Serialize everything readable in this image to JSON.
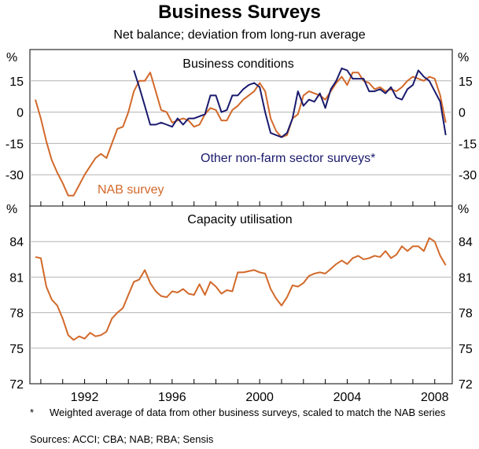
{
  "title": "Business Surveys",
  "subtitle": "Net balance; deviation from long-run average",
  "footnote_star": "*",
  "footnote_text": "Weighted average of data from other business surveys, scaled to match the NAB series",
  "sources": "Sources: ACCI; CBA; NAB; RBA; Sensis",
  "colors": {
    "nab": "#d2692a",
    "other": "#1a1a6e",
    "axis": "#000000",
    "grid": "#b3b3b3"
  },
  "chart_data": [
    {
      "type": "line",
      "title": "Business conditions",
      "ylabel": "%",
      "ylim": [
        -45,
        30
      ],
      "yticks": [
        "15",
        "0",
        "-15",
        "-30"
      ],
      "ytick_values": [
        15,
        0,
        -15,
        -30
      ],
      "xlim": [
        1989.5,
        2008.8
      ],
      "xticks": [
        "1992",
        "1996",
        "2000",
        "2004",
        "2008"
      ],
      "xtick_values": [
        1992,
        1996,
        2000,
        2004,
        2008
      ],
      "series": [
        {
          "name": "NAB survey",
          "x": [
            1989.75,
            1990,
            1990.25,
            1990.5,
            1990.75,
            1991,
            1991.25,
            1991.5,
            1991.75,
            1992,
            1992.25,
            1992.5,
            1992.75,
            1993,
            1993.25,
            1993.5,
            1993.75,
            1994,
            1994.25,
            1994.5,
            1994.75,
            1995,
            1995.25,
            1995.5,
            1995.75,
            1996,
            1996.25,
            1996.5,
            1996.75,
            1997,
            1997.25,
            1997.5,
            1997.75,
            1998,
            1998.25,
            1998.5,
            1998.75,
            1999,
            1999.25,
            1999.5,
            1999.75,
            2000,
            2000.25,
            2000.5,
            2000.75,
            2001,
            2001.25,
            2001.5,
            2001.75,
            2002,
            2002.25,
            2002.5,
            2002.75,
            2003,
            2003.25,
            2003.5,
            2003.75,
            2004,
            2004.25,
            2004.5,
            2004.75,
            2005,
            2005.25,
            2005.5,
            2005.75,
            2006,
            2006.25,
            2006.5,
            2006.75,
            2007,
            2007.25,
            2007.5,
            2007.75,
            2008,
            2008.25,
            2008.5
          ],
          "values": [
            6,
            -3,
            -14,
            -23,
            -29,
            -34,
            -40,
            -40,
            -35,
            -30,
            -26,
            -22,
            -20,
            -22,
            -15,
            -8,
            -7,
            0,
            10,
            15,
            15,
            19,
            10,
            1,
            0,
            -5,
            -4,
            -3,
            -4,
            -7,
            -6,
            -1,
            2,
            1,
            -4,
            -4,
            1,
            3,
            6,
            8,
            10,
            14,
            10,
            -3,
            -9,
            -12,
            -11,
            -3,
            -1,
            8,
            10,
            9,
            8,
            6,
            10,
            14,
            17,
            13,
            19,
            19,
            15,
            14,
            11,
            12,
            10,
            11,
            10,
            12,
            15,
            17,
            16,
            15,
            17,
            16,
            8,
            -5
          ]
        },
        {
          "name": "Other non-farm sector surveys*",
          "x": [
            1994.25,
            1994.5,
            1994.75,
            1995,
            1995.25,
            1995.5,
            1995.75,
            1996,
            1996.25,
            1996.5,
            1996.75,
            1997,
            1997.25,
            1997.5,
            1997.75,
            1998,
            1998.25,
            1998.5,
            1998.75,
            1999,
            1999.25,
            1999.5,
            1999.75,
            2000,
            2000.25,
            2000.5,
            2000.75,
            2001,
            2001.25,
            2001.5,
            2001.75,
            2002,
            2002.25,
            2002.5,
            2002.75,
            2003,
            2003.25,
            2003.5,
            2003.75,
            2004,
            2004.25,
            2004.5,
            2004.75,
            2005,
            2005.25,
            2005.5,
            2005.75,
            2006,
            2006.25,
            2006.5,
            2006.75,
            2007,
            2007.25,
            2007.5,
            2007.75,
            2008,
            2008.25,
            2008.5
          ],
          "values": [
            20,
            12,
            3,
            -6,
            -6,
            -5,
            -6,
            -7,
            -3,
            -6,
            -3,
            -3,
            -2,
            -1,
            8,
            8,
            0,
            1,
            8,
            8,
            11,
            13,
            14,
            12,
            0,
            -10,
            -11,
            -12,
            -10,
            -3,
            10,
            3,
            6,
            5,
            9,
            2,
            11,
            15,
            21,
            20,
            16,
            16,
            16,
            10,
            10,
            11,
            9,
            12,
            7,
            6,
            11,
            13,
            20,
            17,
            15,
            10,
            5,
            -11
          ]
        }
      ],
      "annotations": [
        "NAB survey",
        "Other non-farm sector surveys*"
      ]
    },
    {
      "type": "line",
      "title": "Capacity utilisation",
      "ylabel": "%",
      "ylim": [
        72,
        87
      ],
      "yticks": [
        "84",
        "81",
        "78",
        "75",
        "72"
      ],
      "ytick_values": [
        84,
        81,
        78,
        75,
        72
      ],
      "xlim": [
        1989.5,
        2008.8
      ],
      "xticks": [
        "1992",
        "1996",
        "2000",
        "2004",
        "2008"
      ],
      "xtick_values": [
        1992,
        1996,
        2000,
        2004,
        2008
      ],
      "series": [
        {
          "name": "NAB survey",
          "x": [
            1989.75,
            1990,
            1990.25,
            1990.5,
            1990.75,
            1991,
            1991.25,
            1991.5,
            1991.75,
            1992,
            1992.25,
            1992.5,
            1992.75,
            1993,
            1993.25,
            1993.5,
            1993.75,
            1994,
            1994.25,
            1994.5,
            1994.75,
            1995,
            1995.25,
            1995.5,
            1995.75,
            1996,
            1996.25,
            1996.5,
            1996.75,
            1997,
            1997.25,
            1997.5,
            1997.75,
            1998,
            1998.25,
            1998.5,
            1998.75,
            1999,
            1999.25,
            1999.5,
            1999.75,
            2000,
            2000.25,
            2000.5,
            2000.75,
            2001,
            2001.25,
            2001.5,
            2001.75,
            2002,
            2002.25,
            2002.5,
            2002.75,
            2003,
            2003.25,
            2003.5,
            2003.75,
            2004,
            2004.25,
            2004.5,
            2004.75,
            2005,
            2005.25,
            2005.5,
            2005.75,
            2006,
            2006.25,
            2006.5,
            2006.75,
            2007,
            2007.25,
            2007.5,
            2007.75,
            2008,
            2008.25,
            2008.5
          ],
          "values": [
            82.7,
            82.6,
            80.2,
            79.1,
            78.6,
            77.5,
            76.1,
            75.7,
            76.0,
            75.8,
            76.3,
            76.0,
            76.1,
            76.4,
            77.5,
            78.0,
            78.4,
            79.5,
            80.6,
            80.8,
            81.6,
            80.5,
            79.8,
            79.4,
            79.3,
            79.8,
            79.7,
            80.0,
            79.6,
            79.5,
            80.4,
            79.5,
            80.6,
            80.2,
            79.6,
            79.9,
            79.8,
            81.4,
            81.4,
            81.5,
            81.6,
            81.4,
            81.3,
            80.0,
            79.2,
            78.6,
            79.3,
            80.3,
            80.2,
            80.5,
            81.1,
            81.3,
            81.4,
            81.3,
            81.7,
            82.1,
            82.4,
            82.1,
            82.6,
            82.8,
            82.5,
            82.6,
            82.8,
            82.7,
            83.2,
            82.6,
            82.9,
            83.6,
            83.2,
            83.6,
            83.6,
            83.2,
            84.3,
            84.0,
            82.8,
            82.0
          ]
        }
      ],
      "annotations": []
    }
  ]
}
